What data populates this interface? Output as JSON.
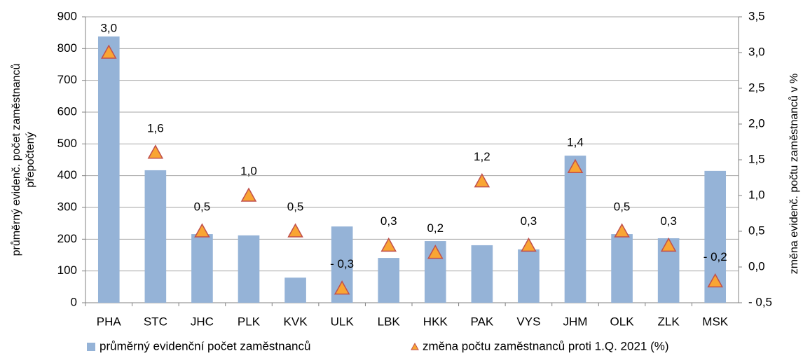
{
  "chart_data": {
    "type": "bar",
    "categories": [
      "PHA",
      "STC",
      "JHC",
      "PLK",
      "KVK",
      "ULK",
      "LBK",
      "HKK",
      "PAK",
      "VYS",
      "JHM",
      "OLK",
      "ZLK",
      "MSK"
    ],
    "series": [
      {
        "name": "průměrný evidenční počet zaměstnanců",
        "color": "#95b3d7",
        "values": [
          838,
          417,
          216,
          212,
          79,
          240,
          141,
          194,
          181,
          168,
          463,
          216,
          203,
          415
        ]
      },
      {
        "name": "změna počtu zaměstnanců proti 1.Q. 2021 (%)",
        "color": "#f9a533",
        "axis": "y2",
        "type": "scatter",
        "values": [
          3.0,
          1.6,
          0.5,
          1.0,
          0.5,
          -0.3,
          0.3,
          0.2,
          1.2,
          0.3,
          1.4,
          0.5,
          0.3,
          -0.2
        ],
        "value_labels": [
          "3,0",
          "1,6",
          "0,5",
          "1,0",
          "0,5",
          "- 0,3",
          "0,3",
          "0,2",
          "1,2",
          "0,3",
          "1,4",
          "0,5",
          "0,3",
          "- 0,2"
        ]
      }
    ],
    "y_label": "průměrný evidenč. počet zaměstnanců přepočtený",
    "y2_label": "změna  evidenč. počtu zaměstnanců v %",
    "ylim": [
      0,
      900
    ],
    "yticks": [
      0,
      100,
      200,
      300,
      400,
      500,
      600,
      700,
      800,
      900
    ],
    "y2lim": [
      -0.5,
      3.5
    ],
    "y2ticks": [
      {
        "value": -0.5,
        "label": "- 0,5"
      },
      {
        "value": 0,
        "label": "0,0"
      },
      {
        "value": 0.5,
        "label": "0,5"
      },
      {
        "value": 1,
        "label": "1,0"
      },
      {
        "value": 1.5,
        "label": "1,5"
      },
      {
        "value": 2,
        "label": "2,0"
      },
      {
        "value": 2.5,
        "label": "2,5"
      },
      {
        "value": 3,
        "label": "3,0"
      },
      {
        "value": 3.5,
        "label": "3,5"
      }
    ],
    "grid": true,
    "legend": "bottom"
  }
}
